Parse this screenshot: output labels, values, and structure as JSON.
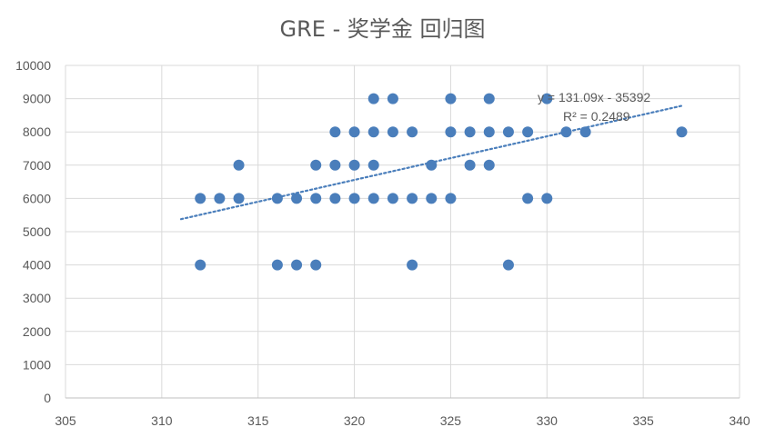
{
  "chart_data": {
    "type": "scatter",
    "title": "GRE - 奖学金 回归图",
    "xlabel": "",
    "ylabel": "",
    "xlim": [
      305,
      340
    ],
    "ylim": [
      0,
      10000
    ],
    "x_ticks": [
      305,
      310,
      315,
      320,
      325,
      330,
      335,
      340
    ],
    "y_ticks": [
      0,
      1000,
      2000,
      3000,
      4000,
      5000,
      6000,
      7000,
      8000,
      9000,
      10000
    ],
    "grid": true,
    "legend": "none",
    "series": [
      {
        "x": [
          312,
          313,
          314,
          316,
          317,
          318,
          319,
          320,
          321,
          322,
          323,
          324,
          325,
          329,
          330,
          314,
          318,
          319,
          320,
          321,
          324,
          326,
          327,
          319,
          320,
          321,
          322,
          323,
          325,
          326,
          327,
          328,
          329,
          331,
          332,
          337,
          321,
          322,
          325,
          327,
          330,
          312,
          316,
          317,
          318,
          323,
          328
        ],
        "y": [
          6000,
          6000,
          6000,
          6000,
          6000,
          6000,
          6000,
          6000,
          6000,
          6000,
          6000,
          6000,
          6000,
          6000,
          6000,
          7000,
          7000,
          7000,
          7000,
          7000,
          7000,
          7000,
          7000,
          8000,
          8000,
          8000,
          8000,
          8000,
          8000,
          8000,
          8000,
          8000,
          8000,
          8000,
          8000,
          8000,
          9000,
          9000,
          9000,
          9000,
          9000,
          4000,
          4000,
          4000,
          4000,
          4000,
          4000
        ]
      }
    ],
    "trendline": {
      "type": "linear",
      "slope": 131.09,
      "intercept": -35392,
      "x_range": [
        311,
        337
      ],
      "equation": "y = 131.09x - 35392",
      "r_squared": "R² = 0.2489"
    },
    "colors": {
      "marker": "#4a7ebb",
      "trendline": "#4a7ebb",
      "grid": "#d9d9d9",
      "text": "#595959"
    }
  }
}
